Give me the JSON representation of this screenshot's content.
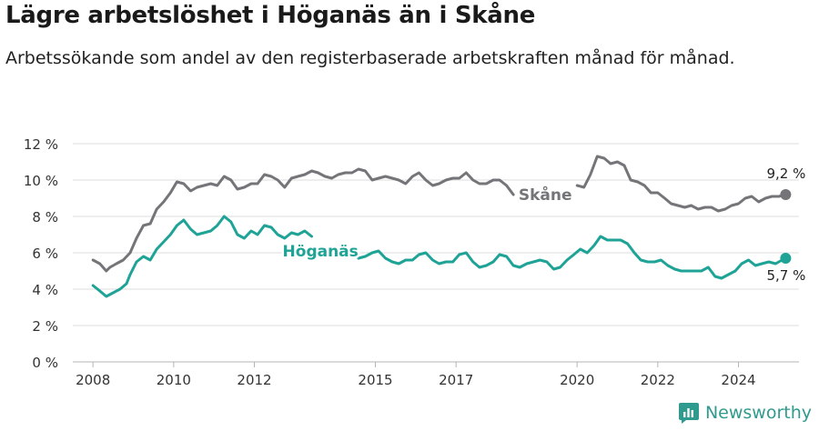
{
  "title": "Lägre arbetslöshet i Höganäs än i Skåne",
  "subtitle": "Arbetssökande som andel av den registerbaserade arbetskraften månad för månad.",
  "brand": "Newsworthy",
  "colors": {
    "skane": "#757478",
    "hoganas": "#1ea396",
    "grid": "#dcdcdc",
    "brand": "#2f9a8e"
  },
  "chart_data": {
    "type": "line",
    "title": "Lägre arbetslöshet i Höganäs än i Skåne",
    "subtitle": "Arbetssökande som andel av den registerbaserade arbetskraften månad för månad.",
    "y_ticks": [
      0,
      2,
      4,
      6,
      8,
      10,
      12
    ],
    "y_tick_labels": [
      "0 %",
      "2 %",
      "4 %",
      "6 %",
      "8 %",
      "10 %",
      "12 %"
    ],
    "x_ticks": [
      2008,
      2010,
      2012,
      2015,
      2017,
      2020,
      2022,
      2024
    ],
    "x_tick_labels": [
      "2008",
      "2010",
      "2012",
      "2015",
      "2017",
      "2020",
      "2022",
      "2024"
    ],
    "xlim": [
      2007.5,
      2025.5
    ],
    "ylim": [
      0,
      12.4
    ],
    "grid": true,
    "series": [
      {
        "name": "Skåne",
        "end_label": "9,2 %",
        "segments": [
          [
            [
              2008.0,
              5.6
            ],
            [
              2008.17,
              5.4
            ],
            [
              2008.33,
              5.0
            ],
            [
              2008.42,
              5.2
            ],
            [
              2008.58,
              5.4
            ],
            [
              2008.75,
              5.6
            ],
            [
              2008.92,
              6.0
            ],
            [
              2009.08,
              6.8
            ],
            [
              2009.25,
              7.5
            ],
            [
              2009.42,
              7.6
            ],
            [
              2009.58,
              8.4
            ],
            [
              2009.75,
              8.8
            ],
            [
              2009.92,
              9.3
            ],
            [
              2010.08,
              9.9
            ],
            [
              2010.25,
              9.8
            ],
            [
              2010.42,
              9.4
            ],
            [
              2010.58,
              9.6
            ],
            [
              2010.75,
              9.7
            ],
            [
              2010.92,
              9.8
            ],
            [
              2011.08,
              9.7
            ],
            [
              2011.25,
              10.2
            ],
            [
              2011.42,
              10.0
            ],
            [
              2011.58,
              9.5
            ],
            [
              2011.75,
              9.6
            ],
            [
              2011.92,
              9.8
            ],
            [
              2012.08,
              9.8
            ],
            [
              2012.25,
              10.3
            ],
            [
              2012.42,
              10.2
            ],
            [
              2012.58,
              10.0
            ],
            [
              2012.75,
              9.6
            ],
            [
              2012.92,
              10.1
            ],
            [
              2013.08,
              10.2
            ],
            [
              2013.25,
              10.3
            ],
            [
              2013.42,
              10.5
            ],
            [
              2013.58,
              10.4
            ],
            [
              2013.75,
              10.2
            ],
            [
              2013.92,
              10.1
            ],
            [
              2014.08,
              10.3
            ],
            [
              2014.25,
              10.4
            ],
            [
              2014.42,
              10.4
            ],
            [
              2014.58,
              10.6
            ],
            [
              2014.75,
              10.5
            ],
            [
              2014.92,
              10.0
            ],
            [
              2015.08,
              10.1
            ],
            [
              2015.25,
              10.2
            ],
            [
              2015.42,
              10.1
            ],
            [
              2015.58,
              10.0
            ],
            [
              2015.75,
              9.8
            ],
            [
              2015.92,
              10.2
            ],
            [
              2016.08,
              10.4
            ],
            [
              2016.25,
              10.0
            ],
            [
              2016.42,
              9.7
            ],
            [
              2016.58,
              9.8
            ],
            [
              2016.75,
              10.0
            ],
            [
              2016.92,
              10.1
            ],
            [
              2017.08,
              10.1
            ],
            [
              2017.25,
              10.4
            ],
            [
              2017.42,
              10.0
            ],
            [
              2017.58,
              9.8
            ],
            [
              2017.75,
              9.8
            ],
            [
              2017.92,
              10.0
            ],
            [
              2018.08,
              10.0
            ],
            [
              2018.25,
              9.7
            ],
            [
              2018.42,
              9.2
            ]
          ],
          [
            [
              2020.0,
              9.7
            ],
            [
              2020.17,
              9.6
            ],
            [
              2020.33,
              10.3
            ],
            [
              2020.5,
              11.3
            ],
            [
              2020.67,
              11.2
            ],
            [
              2020.83,
              10.9
            ],
            [
              2021.0,
              11.0
            ],
            [
              2021.17,
              10.8
            ],
            [
              2021.33,
              10.0
            ],
            [
              2021.5,
              9.9
            ],
            [
              2021.67,
              9.7
            ],
            [
              2021.83,
              9.3
            ],
            [
              2022.0,
              9.3
            ],
            [
              2022.17,
              9.0
            ],
            [
              2022.33,
              8.7
            ],
            [
              2022.5,
              8.6
            ],
            [
              2022.67,
              8.5
            ],
            [
              2022.83,
              8.6
            ],
            [
              2023.0,
              8.4
            ],
            [
              2023.17,
              8.5
            ],
            [
              2023.33,
              8.5
            ],
            [
              2023.5,
              8.3
            ],
            [
              2023.67,
              8.4
            ],
            [
              2023.83,
              8.6
            ],
            [
              2024.0,
              8.7
            ],
            [
              2024.17,
              9.0
            ],
            [
              2024.33,
              9.1
            ],
            [
              2024.5,
              8.8
            ],
            [
              2024.67,
              9.0
            ],
            [
              2024.83,
              9.1
            ],
            [
              2025.0,
              9.1
            ],
            [
              2025.17,
              9.2
            ]
          ]
        ]
      },
      {
        "name": "Höganäs",
        "end_label": "5,7 %",
        "segments": [
          [
            [
              2008.0,
              4.2
            ],
            [
              2008.17,
              3.9
            ],
            [
              2008.33,
              3.6
            ],
            [
              2008.5,
              3.8
            ],
            [
              2008.67,
              4.0
            ],
            [
              2008.83,
              4.3
            ],
            [
              2008.92,
              4.8
            ],
            [
              2009.08,
              5.5
            ],
            [
              2009.25,
              5.8
            ],
            [
              2009.42,
              5.6
            ],
            [
              2009.58,
              6.2
            ],
            [
              2009.75,
              6.6
            ],
            [
              2009.92,
              7.0
            ],
            [
              2010.08,
              7.5
            ],
            [
              2010.25,
              7.8
            ],
            [
              2010.42,
              7.3
            ],
            [
              2010.58,
              7.0
            ],
            [
              2010.75,
              7.1
            ],
            [
              2010.92,
              7.2
            ],
            [
              2011.08,
              7.5
            ],
            [
              2011.25,
              8.0
            ],
            [
              2011.42,
              7.7
            ],
            [
              2011.58,
              7.0
            ],
            [
              2011.75,
              6.8
            ],
            [
              2011.92,
              7.2
            ],
            [
              2012.08,
              7.0
            ],
            [
              2012.25,
              7.5
            ],
            [
              2012.42,
              7.4
            ],
            [
              2012.58,
              7.0
            ],
            [
              2012.75,
              6.8
            ],
            [
              2012.92,
              7.1
            ],
            [
              2013.08,
              7.0
            ],
            [
              2013.25,
              7.2
            ],
            [
              2013.42,
              6.9
            ]
          ],
          [
            [
              2014.58,
              5.7
            ],
            [
              2014.75,
              5.8
            ],
            [
              2014.92,
              6.0
            ],
            [
              2015.08,
              6.1
            ],
            [
              2015.25,
              5.7
            ],
            [
              2015.42,
              5.5
            ],
            [
              2015.58,
              5.4
            ],
            [
              2015.75,
              5.6
            ],
            [
              2015.92,
              5.6
            ],
            [
              2016.08,
              5.9
            ],
            [
              2016.25,
              6.0
            ],
            [
              2016.42,
              5.6
            ],
            [
              2016.58,
              5.4
            ],
            [
              2016.75,
              5.5
            ],
            [
              2016.92,
              5.5
            ],
            [
              2017.08,
              5.9
            ],
            [
              2017.25,
              6.0
            ],
            [
              2017.42,
              5.5
            ],
            [
              2017.58,
              5.2
            ],
            [
              2017.75,
              5.3
            ],
            [
              2017.92,
              5.5
            ],
            [
              2018.08,
              5.9
            ],
            [
              2018.25,
              5.8
            ],
            [
              2018.42,
              5.3
            ],
            [
              2018.58,
              5.2
            ],
            [
              2018.75,
              5.4
            ],
            [
              2018.92,
              5.5
            ],
            [
              2019.08,
              5.6
            ],
            [
              2019.25,
              5.5
            ],
            [
              2019.42,
              5.1
            ],
            [
              2019.58,
              5.2
            ],
            [
              2019.75,
              5.6
            ],
            [
              2019.92,
              5.9
            ],
            [
              2020.08,
              6.2
            ],
            [
              2020.25,
              6.0
            ],
            [
              2020.42,
              6.4
            ],
            [
              2020.58,
              6.9
            ],
            [
              2020.75,
              6.7
            ],
            [
              2020.92,
              6.7
            ],
            [
              2021.08,
              6.7
            ],
            [
              2021.25,
              6.5
            ],
            [
              2021.42,
              6.0
            ],
            [
              2021.58,
              5.6
            ],
            [
              2021.75,
              5.5
            ],
            [
              2021.92,
              5.5
            ],
            [
              2022.08,
              5.6
            ],
            [
              2022.25,
              5.3
            ],
            [
              2022.42,
              5.1
            ],
            [
              2022.58,
              5.0
            ],
            [
              2022.75,
              5.0
            ],
            [
              2022.92,
              5.0
            ],
            [
              2023.08,
              5.0
            ],
            [
              2023.25,
              5.2
            ],
            [
              2023.42,
              4.7
            ],
            [
              2023.58,
              4.6
            ],
            [
              2023.75,
              4.8
            ],
            [
              2023.92,
              5.0
            ],
            [
              2024.08,
              5.4
            ],
            [
              2024.25,
              5.6
            ],
            [
              2024.42,
              5.3
            ],
            [
              2024.58,
              5.4
            ],
            [
              2024.75,
              5.5
            ],
            [
              2024.92,
              5.4
            ],
            [
              2025.08,
              5.6
            ],
            [
              2025.17,
              5.7
            ]
          ]
        ]
      }
    ],
    "annotations": [
      {
        "text": "Skåne",
        "series": "Skåne",
        "x": 2018.55,
        "y": 9.2
      },
      {
        "text": "Höganäs",
        "series": "Höganäs",
        "x": 2012.7,
        "y": 6.1
      }
    ]
  }
}
